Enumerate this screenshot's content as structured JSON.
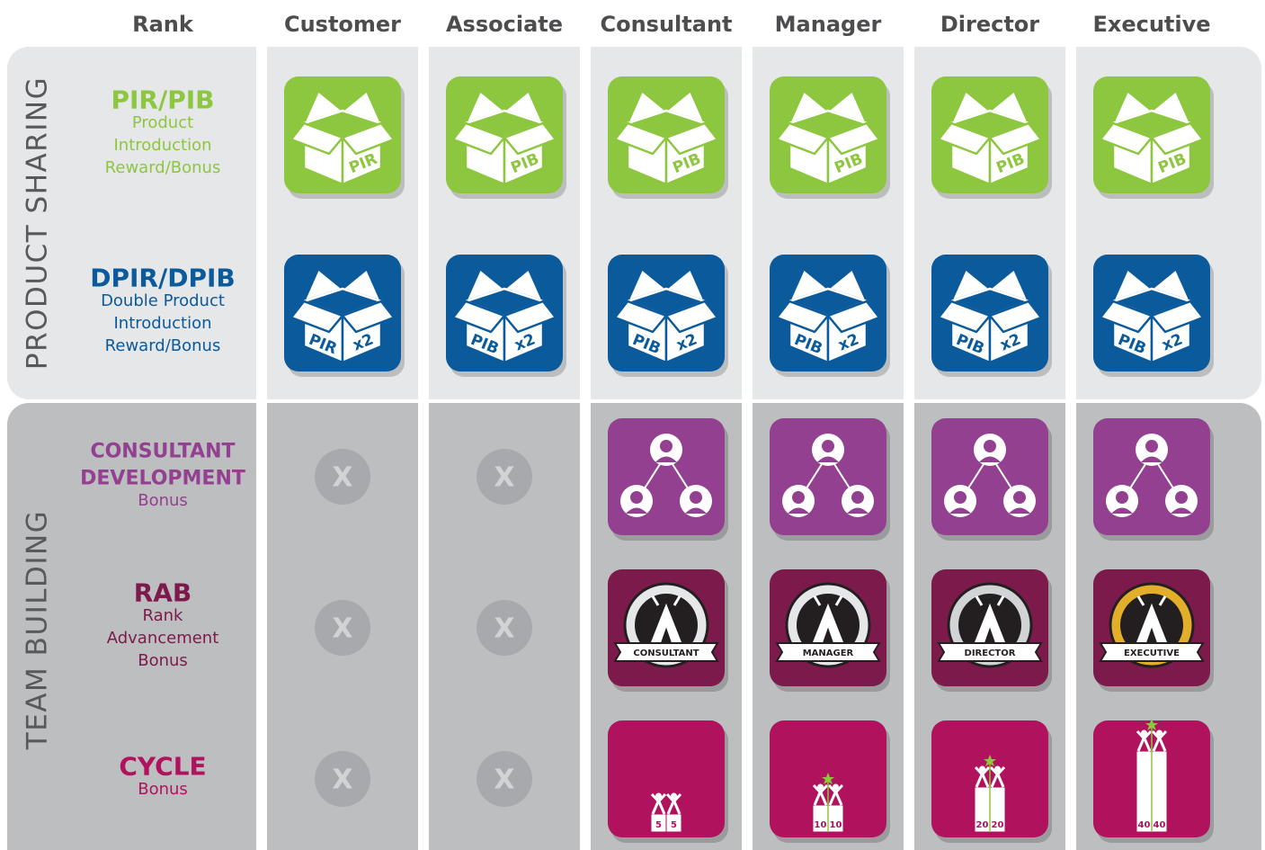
{
  "header": {
    "columns": [
      "Rank",
      "Customer",
      "Associate",
      "Consultant",
      "Manager",
      "Director",
      "Executive"
    ]
  },
  "sections": [
    {
      "label": "PRODUCT SHARING",
      "rows": [
        {
          "title": [
            "PIR/PIB"
          ],
          "lines": [
            "Product",
            "Introduction",
            "Reward/Bonus"
          ],
          "color": "#8dc63f",
          "cells": [
            {
              "kind": "box",
              "text": "PIR"
            },
            {
              "kind": "box",
              "text": "PIB"
            },
            {
              "kind": "box",
              "text": "PIB"
            },
            {
              "kind": "box",
              "text": "PIB"
            },
            {
              "kind": "box",
              "text": "PIB"
            },
            {
              "kind": "box",
              "text": "PIB"
            }
          ]
        },
        {
          "title": [
            "DPIR/DPIB"
          ],
          "lines": [
            "Double Product",
            "Introduction",
            "Reward/Bonus"
          ],
          "color": "#0b5a9c",
          "cells": [
            {
              "kind": "box2",
              "text": "PIR",
              "extra": "x2"
            },
            {
              "kind": "box2",
              "text": "PIB",
              "extra": "x2"
            },
            {
              "kind": "box2",
              "text": "PIB",
              "extra": "x2"
            },
            {
              "kind": "box2",
              "text": "PIB",
              "extra": "x2"
            },
            {
              "kind": "box2",
              "text": "PIB",
              "extra": "x2"
            },
            {
              "kind": "box2",
              "text": "PIB",
              "extra": "x2"
            }
          ]
        }
      ]
    },
    {
      "label": "TEAM BUILDING",
      "rows": [
        {
          "title": [
            "CONSULTANT",
            "DEVELOPMENT"
          ],
          "lines": [
            "Bonus"
          ],
          "color": "#92408f",
          "cells": [
            {
              "kind": "none",
              "text": "X"
            },
            {
              "kind": "none",
              "text": "X"
            },
            {
              "kind": "tree"
            },
            {
              "kind": "tree"
            },
            {
              "kind": "tree"
            },
            {
              "kind": "tree"
            }
          ]
        },
        {
          "title": [
            "RAB"
          ],
          "lines": [
            "Rank",
            "Advancement",
            "Bonus"
          ],
          "color": "#7d1a4c",
          "cells": [
            {
              "kind": "none",
              "text": "X"
            },
            {
              "kind": "none",
              "text": "X"
            },
            {
              "kind": "badge",
              "text": "CONSULTANT",
              "ring": "#e6e7e8"
            },
            {
              "kind": "badge",
              "text": "MANAGER",
              "ring": "#e6e7e8"
            },
            {
              "kind": "badge",
              "text": "DIRECTOR",
              "ring": "#d1d3d4"
            },
            {
              "kind": "badge",
              "text": "EXECUTIVE",
              "ring": "#e3ae2a"
            }
          ]
        },
        {
          "title": [
            "CYCLE"
          ],
          "lines": [
            "Bonus"
          ],
          "color": "#b0125e",
          "cells": [
            {
              "kind": "none",
              "text": "X"
            },
            {
              "kind": "none",
              "text": "X"
            },
            {
              "kind": "cycle",
              "numbers": [
                5,
                5
              ],
              "star": false
            },
            {
              "kind": "cycle",
              "numbers": [
                10,
                10
              ],
              "star": true
            },
            {
              "kind": "cycle",
              "numbers": [
                20,
                20
              ],
              "star": true
            },
            {
              "kind": "cycle",
              "numbers": [
                40,
                40
              ],
              "star": true
            }
          ]
        }
      ]
    }
  ]
}
